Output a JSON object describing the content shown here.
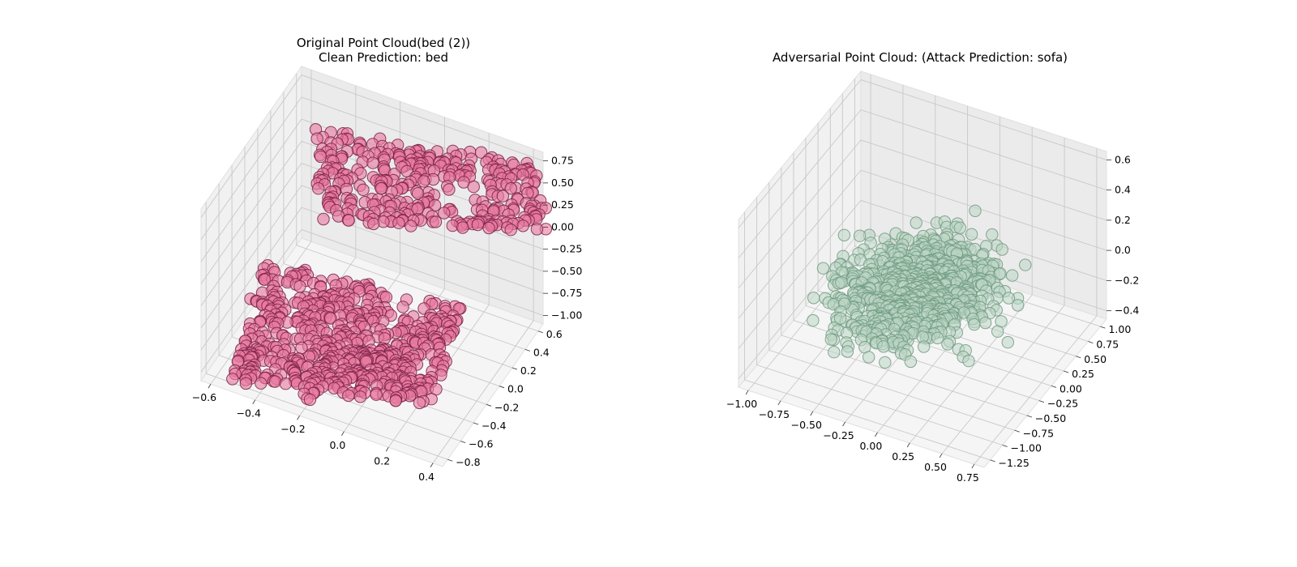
{
  "chart_data": [
    {
      "type": "scatter",
      "projection": "3d",
      "title_line1": "Original Point Cloud(bed (2))",
      "title_line2": "Clean Prediction: bed",
      "color": "#e8799f",
      "edge_color": "#7a1f45",
      "xlim": [
        -0.6,
        0.45
      ],
      "ylim": [
        -0.85,
        0.7
      ],
      "zlim": [
        -1.05,
        0.85
      ],
      "x_ticks": [
        "−0.6",
        "−0.4",
        "−0.2",
        "0.0",
        "0.2",
        "0.4"
      ],
      "y_ticks": [
        "−0.8",
        "−0.6",
        "−0.4",
        "−0.2",
        "0.0",
        "0.2",
        "0.4",
        "0.6"
      ],
      "z_ticks": [
        "−1.00",
        "−0.75",
        "−0.50",
        "−0.25",
        "0.00",
        "0.25",
        "0.50",
        "0.75"
      ],
      "grid": true,
      "point_count": 1024,
      "shape": "bed: rectangular mattress slab with raised headboard panel"
    },
    {
      "type": "scatter",
      "projection": "3d",
      "title_line1": "Adversarial Point Cloud: (Attack Prediction: sofa)",
      "title_line2": "",
      "color": "#bcd6c4",
      "edge_color": "#6f9a80",
      "xlim": [
        -1.0,
        0.95
      ],
      "ylim": [
        -1.3,
        1.05
      ],
      "zlim": [
        -0.5,
        0.65
      ],
      "x_ticks": [
        "−1.00",
        "−0.75",
        "−0.50",
        "−0.25",
        "0.00",
        "0.25",
        "0.50",
        "0.75"
      ],
      "y_ticks": [
        "−1.25",
        "−1.00",
        "−0.75",
        "−0.50",
        "−0.25",
        "0.00",
        "0.25",
        "0.50",
        "0.75",
        "1.00"
      ],
      "z_ticks": [
        "−0.4",
        "−0.2",
        "0.0",
        "0.2",
        "0.4",
        "0.6"
      ],
      "grid": true,
      "point_count": 1024,
      "shape": "diffuse blob of perturbed points"
    }
  ]
}
